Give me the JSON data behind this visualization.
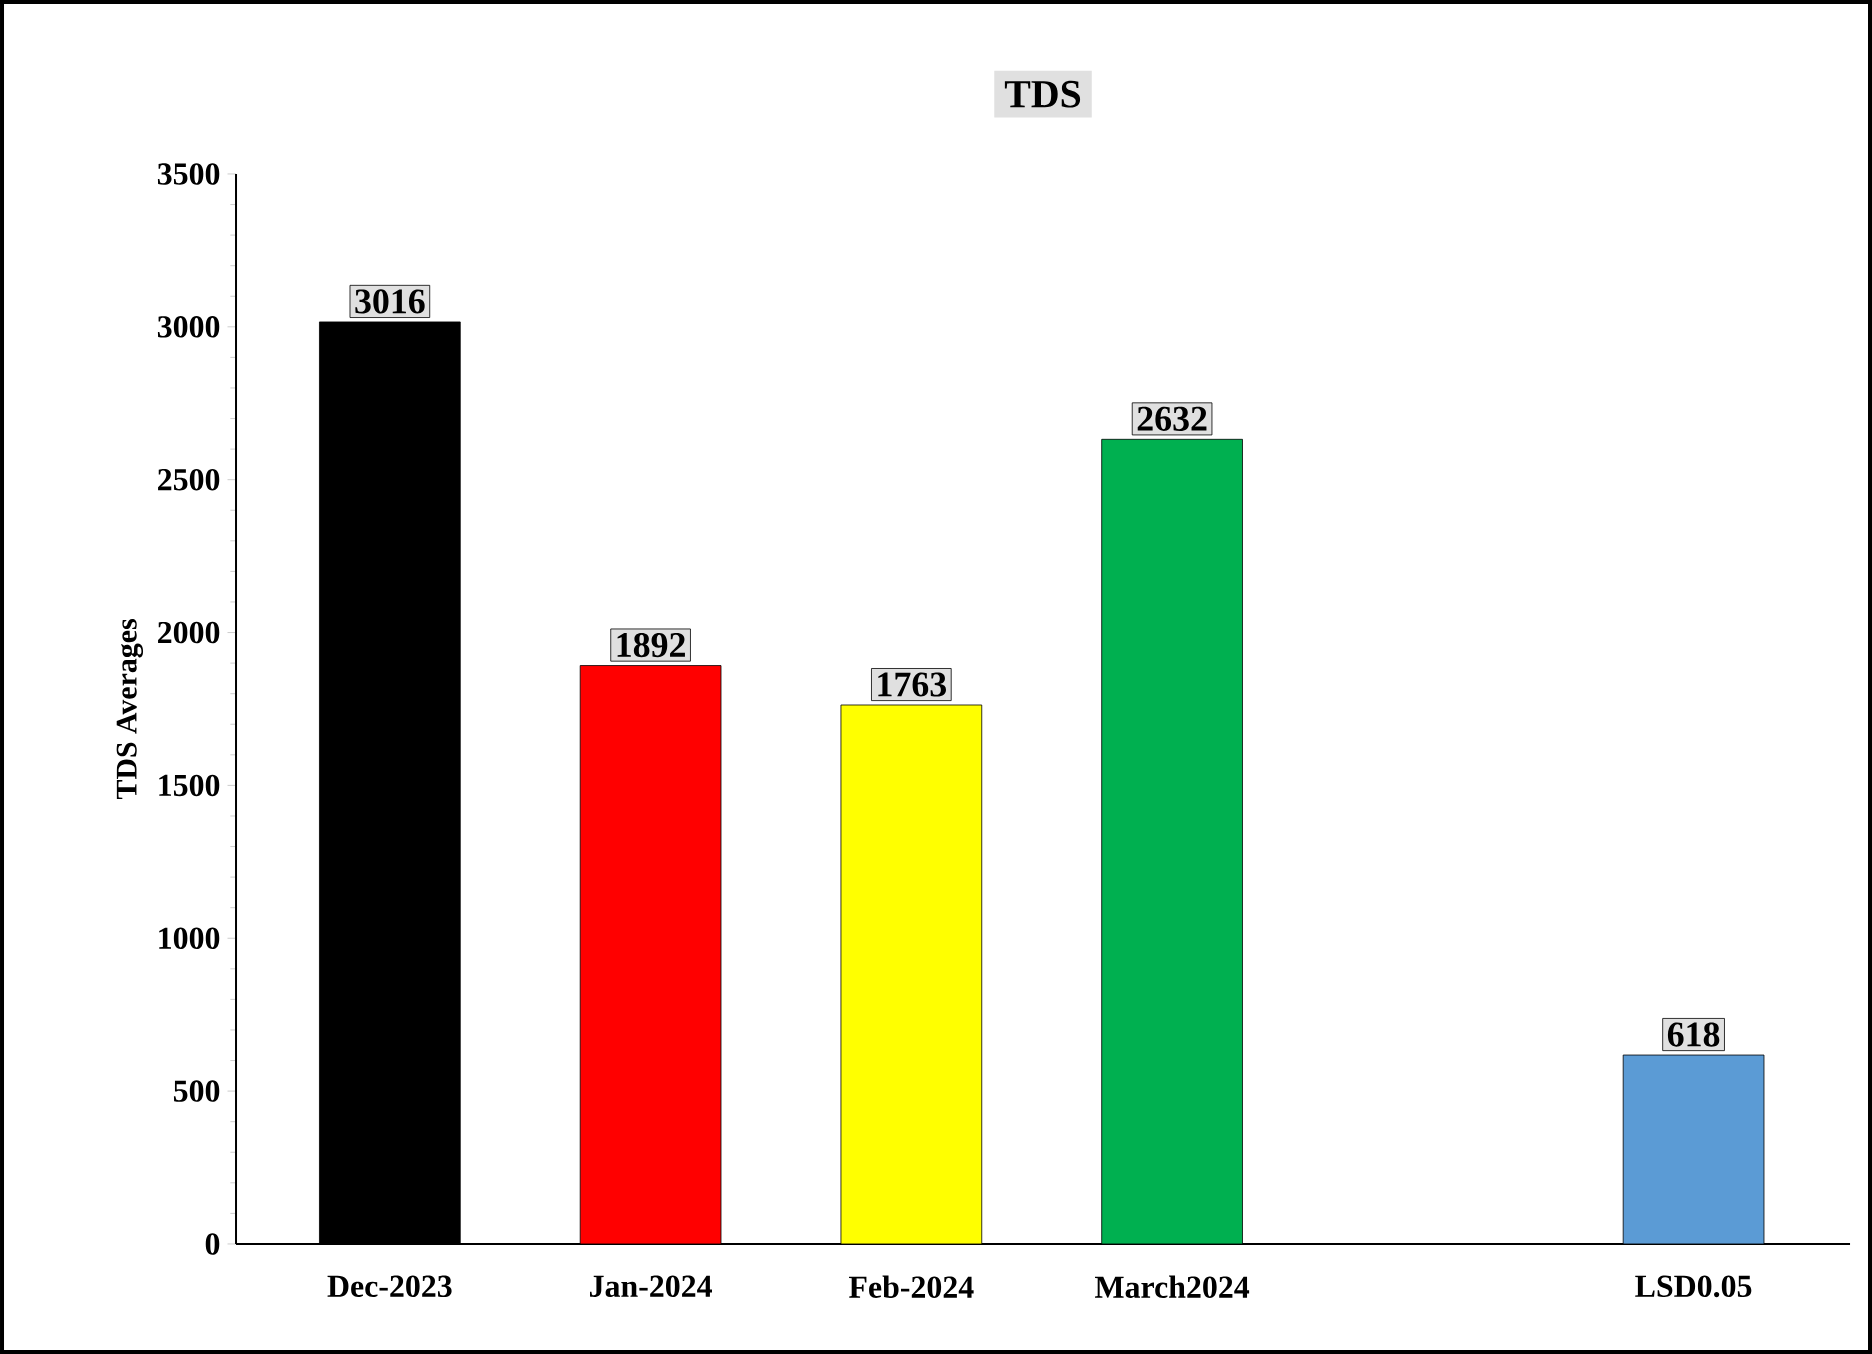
{
  "chart_data": {
    "type": "bar",
    "title": "TDS",
    "ylabel": "TDS Averages",
    "categories": [
      "Dec-2023",
      "Jan-2024",
      "Feb-2024",
      "March2024",
      null,
      "LSD0.05"
    ],
    "values": [
      3016,
      1892,
      1763,
      2632,
      null,
      618
    ],
    "colors": [
      "#000000",
      "#ff0000",
      "#ffff00",
      "#00b050",
      null,
      "#5b9bd5"
    ],
    "ylim": [
      0,
      3500
    ],
    "yticks": [
      0,
      500,
      1000,
      1500,
      2000,
      2500,
      3000,
      3500
    ],
    "data_labels": true,
    "grid": false
  }
}
